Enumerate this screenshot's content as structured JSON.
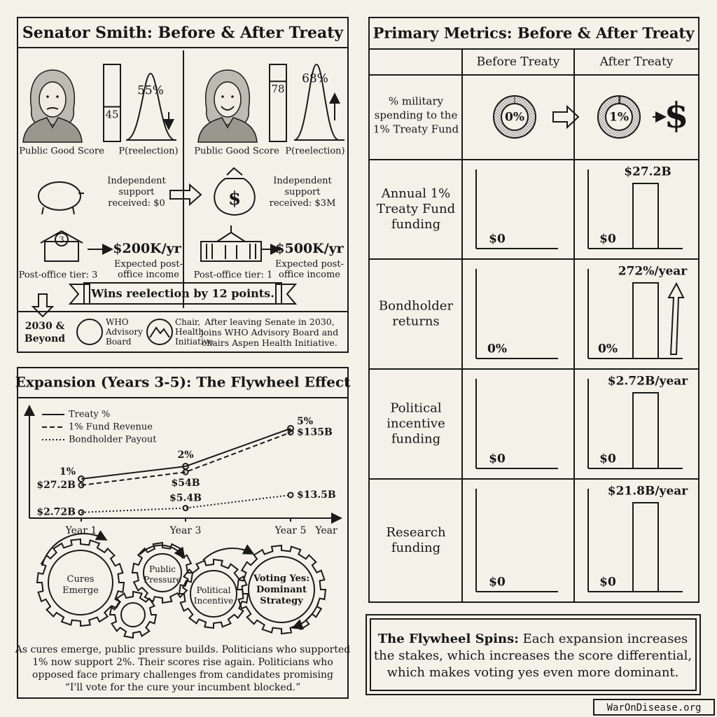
{
  "senator_panel": {
    "title": "Senator Smith: Before & After Treaty",
    "before": {
      "score": 45,
      "reelection": "55%",
      "score_label": "Public Good Score",
      "reelection_label": "P(reelection)",
      "support": [
        "Independent",
        "support",
        "received: $0"
      ],
      "tier_number": "3",
      "tier": "Post-office tier: 3",
      "income": "$200K/yr",
      "income_label": [
        "Expected post-",
        "office income"
      ]
    },
    "after": {
      "score": 78,
      "reelection": "68%",
      "score_label": "Public Good Score",
      "reelection_label": "P(reelection)",
      "support": [
        "Independent",
        "support",
        "received: $3M"
      ],
      "money_symbol": "$",
      "tier": "Post-office tier: 1",
      "income": "$500K/yr",
      "income_label": [
        "Expected post-",
        "office income"
      ]
    },
    "banner": "Wins reelection by 12 points.",
    "future": {
      "label": [
        "2030 &",
        "Beyond"
      ],
      "who": [
        "WHO",
        "Advisory",
        "Board"
      ],
      "aspen": [
        "Chair,",
        "Health",
        "Initiative"
      ],
      "text": [
        "After leaving Senate in 2030,",
        "joins WHO Advisory Board and",
        "chairs Aspen Health Initiative."
      ]
    }
  },
  "expansion_panel": {
    "title": "Expansion (Years 3-5): The Flywheel Effect",
    "chart": {
      "type": "line",
      "categories": [
        "Year 1",
        "Year 3",
        "Year 5"
      ],
      "x_label": "Year",
      "series": [
        {
          "name": "Treaty %",
          "values": [
            1,
            2,
            5
          ],
          "value_labels": [
            "1%",
            "2%",
            "5%"
          ]
        },
        {
          "name": "1% Fund Revenue",
          "values": [
            27.2,
            54,
            135
          ],
          "value_labels": [
            "$27.2B",
            "$54B",
            "$135B"
          ]
        },
        {
          "name": "Bondholder Payout",
          "values": [
            2.72,
            5.4,
            13.5
          ],
          "value_labels": [
            "$2.72B",
            "$5.4B",
            "$13.5B"
          ]
        }
      ]
    },
    "gears": [
      [
        "Cures",
        "Emerge"
      ],
      [
        "Public",
        "Pressure"
      ],
      [
        "Political",
        "Incentive"
      ],
      [
        "Voting Yes:",
        "Dominant",
        "Strategy"
      ]
    ],
    "caption": [
      "As cures emerge, public pressure builds. Politicians who supported",
      "1% now support 2%. Their scores rise again. Politicians who",
      "opposed face primary challenges from candidates promising",
      "“I'll vote for the cure your incumbent blocked.”"
    ]
  },
  "metrics_panel": {
    "title": "Primary Metrics: Before & After Treaty",
    "columns": [
      "Before Treaty",
      "After Treaty"
    ],
    "rows": [
      {
        "label": [
          "% military",
          "spending to the",
          "1% Treaty Fund"
        ],
        "type": "donut",
        "before": 0,
        "before_label": "0%",
        "after": 1,
        "after_label": "1%",
        "symbol": "$"
      },
      {
        "label": [
          "Annual 1%",
          "Treaty Fund",
          "funding"
        ],
        "type": "bar",
        "before": 0,
        "before_label": "$0",
        "after": 27.2,
        "after_label": "$27.2B"
      },
      {
        "label": [
          "Bondholder",
          "returns"
        ],
        "type": "bar",
        "before": 0,
        "before_label": "0%",
        "after": 272,
        "after_label": "272%/year"
      },
      {
        "label": [
          "Political",
          "incentive",
          "funding"
        ],
        "type": "bar",
        "before": 0,
        "before_label": "$0",
        "after": 2.72,
        "after_label": "$2.72B/year"
      },
      {
        "label": [
          "Research",
          "funding"
        ],
        "type": "bar",
        "before": 0,
        "before_label": "$0",
        "after": 21.8,
        "after_label": "$21.8B/year"
      }
    ]
  },
  "callout": {
    "lead": "The Flywheel Spins:",
    "text": [
      " Each expansion increases",
      "the stakes, which increases the score differential,",
      "which makes voting yes even more dominant."
    ]
  },
  "footer": "WarOnDisease.org"
}
